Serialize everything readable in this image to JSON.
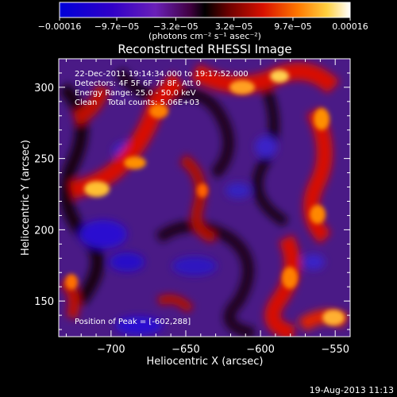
{
  "chart_data": {
    "type": "heatmap",
    "title": "Reconstructed RHESSI Image",
    "xlabel": "Heliocentric X (arcsec)",
    "ylabel": "Heliocentric Y (arcsec)",
    "xlim": [
      -735,
      -540
    ],
    "ylim": [
      125,
      320
    ],
    "x_ticks": [
      -700,
      -650,
      -600,
      -550
    ],
    "y_ticks": [
      150,
      200,
      250,
      300
    ],
    "x_tick_labels": [
      "−700",
      "−650",
      "−600",
      "−550"
    ],
    "y_tick_labels": [
      "150",
      "200",
      "250",
      "300"
    ],
    "colorbar": {
      "range": [
        -0.00016,
        0.00016
      ],
      "tick_values": [
        -0.00016,
        -9.7e-05,
        -3.2e-05,
        3.2e-05,
        9.7e-05,
        0.00016
      ],
      "tick_labels": [
        "−0.00016",
        "−9.7e−05",
        "−3.2e−05",
        "3.2e−05",
        "9.7e−05",
        "0.00016"
      ],
      "unit_label": "(photons cm⁻² s⁻¹ asec⁻²)"
    },
    "annotations": [
      "22-Dec-2011 19:14:34.000 to 19:17:52.000",
      "Detectors: 4F 5F 6F 7F 8F, Att 0",
      "Energy Range: 25.0 - 50.0 keV",
      "Clean    Total counts: 5.06E+03"
    ],
    "peak_label": "Position of Peak = [-602,288]",
    "peak_position": [
      -602,
      288
    ],
    "footer_date": "19-Aug-2013 11:13"
  }
}
